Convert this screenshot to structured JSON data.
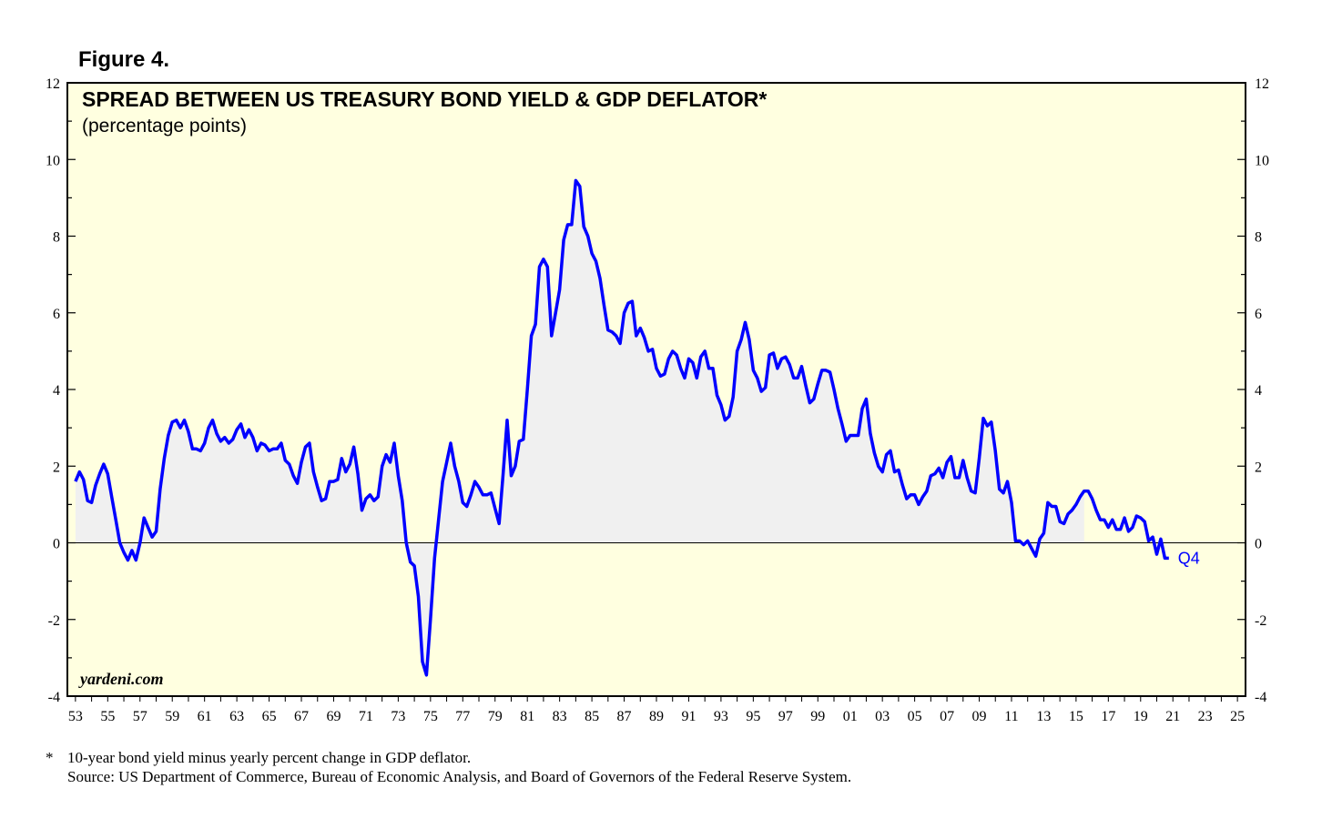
{
  "figure_label": "Figure 4.",
  "watermark": "yardeni.com",
  "footnote": {
    "marker": "*",
    "definition": "10-year bond yield minus yearly percent change in GDP deflator.",
    "source": "Source: US Department of Commerce, Bureau of Economic Analysis, and Board of Governors of the Federal Reserve System."
  },
  "colors": {
    "plot_background": "#FFFFE0",
    "series_line": "#0000FF",
    "area_fill": "#F0F0F0",
    "axis": "#000000"
  },
  "chart_data": {
    "type": "area",
    "title": "SPREAD BETWEEN US TREASURY BOND YIELD & GDP DEFLATOR*",
    "subtitle": "(percentage points)",
    "xlabel": "",
    "ylabel": "",
    "xlim": [
      1952.5,
      2025.5
    ],
    "ylim": [
      -4,
      12
    ],
    "yticks": [
      -4,
      -2,
      0,
      2,
      4,
      6,
      8,
      10,
      12
    ],
    "xtick_labels": [
      "53",
      "55",
      "57",
      "59",
      "61",
      "63",
      "65",
      "67",
      "69",
      "71",
      "73",
      "75",
      "77",
      "79",
      "81",
      "83",
      "85",
      "87",
      "89",
      "91",
      "93",
      "95",
      "97",
      "99",
      "01",
      "03",
      "05",
      "07",
      "09",
      "11",
      "13",
      "15",
      "17",
      "19",
      "21",
      "23",
      "25"
    ],
    "last_point_label": "Q4",
    "grid": false,
    "series": [
      {
        "name": "Spread",
        "x": [
          1953.0,
          1953.25,
          1953.5,
          1953.75,
          1954.0,
          1954.25,
          1954.5,
          1954.75,
          1955.0,
          1955.25,
          1955.5,
          1955.75,
          1956.0,
          1956.25,
          1956.5,
          1956.75,
          1957.0,
          1957.25,
          1957.5,
          1957.75,
          1958.0,
          1958.25,
          1958.5,
          1958.75,
          1959.0,
          1959.25,
          1959.5,
          1959.75,
          1960.0,
          1960.25,
          1960.5,
          1960.75,
          1961.0,
          1961.25,
          1961.5,
          1961.75,
          1962.0,
          1962.25,
          1962.5,
          1962.75,
          1963.0,
          1963.25,
          1963.5,
          1963.75,
          1964.0,
          1964.25,
          1964.5,
          1964.75,
          1965.0,
          1965.25,
          1965.5,
          1965.75,
          1966.0,
          1966.25,
          1966.5,
          1966.75,
          1967.0,
          1967.25,
          1967.5,
          1967.75,
          1968.0,
          1968.25,
          1968.5,
          1968.75,
          1969.0,
          1969.25,
          1969.5,
          1969.75,
          1970.0,
          1970.25,
          1970.5,
          1970.75,
          1971.0,
          1971.25,
          1971.5,
          1971.75,
          1972.0,
          1972.25,
          1972.5,
          1972.75,
          1973.0,
          1973.25,
          1973.5,
          1973.75,
          1974.0,
          1974.25,
          1974.5,
          1974.75,
          1975.0,
          1975.25,
          1975.5,
          1975.75,
          1976.0,
          1976.25,
          1976.5,
          1976.75,
          1977.0,
          1977.25,
          1977.5,
          1977.75,
          1978.0,
          1978.25,
          1978.5,
          1978.75,
          1979.0,
          1979.25,
          1979.5,
          1979.75,
          1980.0,
          1980.25,
          1980.5,
          1980.75,
          1981.0,
          1981.25,
          1981.5,
          1981.75,
          1982.0,
          1982.25,
          1982.5,
          1982.75,
          1983.0,
          1983.25,
          1983.5,
          1983.75,
          1984.0,
          1984.25,
          1984.5,
          1984.75,
          1985.0,
          1985.25,
          1985.5,
          1985.75,
          1986.0,
          1986.25,
          1986.5,
          1986.75,
          1987.0,
          1987.25,
          1987.5,
          1987.75,
          1988.0,
          1988.25,
          1988.5,
          1988.75,
          1989.0,
          1989.25,
          1989.5,
          1989.75,
          1990.0,
          1990.25,
          1990.5,
          1990.75,
          1991.0,
          1991.25,
          1991.5,
          1991.75,
          1992.0,
          1992.25,
          1992.5,
          1992.75,
          1993.0,
          1993.25,
          1993.5,
          1993.75,
          1994.0,
          1994.25,
          1994.5,
          1994.75,
          1995.0,
          1995.25,
          1995.5,
          1995.75,
          1996.0,
          1996.25,
          1996.5,
          1996.75,
          1997.0,
          1997.25,
          1997.5,
          1997.75,
          1998.0,
          1998.25,
          1998.5,
          1998.75,
          1999.0,
          1999.25,
          1999.5,
          1999.75,
          2000.0,
          2000.25,
          2000.5,
          2000.75,
          2001.0,
          2001.25,
          2001.5,
          2001.75,
          2002.0,
          2002.25,
          2002.5,
          2002.75,
          2003.0,
          2003.25,
          2003.5,
          2003.75,
          2004.0,
          2004.25,
          2004.5,
          2004.75,
          2005.0,
          2005.25,
          2005.5,
          2005.75,
          2006.0,
          2006.25,
          2006.5,
          2006.75,
          2007.0,
          2007.25,
          2007.5,
          2007.75,
          2008.0,
          2008.25,
          2008.5,
          2008.75,
          2009.0,
          2009.25,
          2009.5,
          2009.75,
          2010.0,
          2010.25,
          2010.5,
          2010.75,
          2011.0,
          2011.25,
          2011.5,
          2011.75,
          2012.0,
          2012.25,
          2012.5,
          2012.75,
          2013.0,
          2013.25,
          2013.5,
          2013.75,
          2014.0,
          2014.25,
          2014.5,
          2014.75,
          2015.0,
          2015.25,
          2015.5,
          2015.75,
          2016.0,
          2016.25,
          2016.5,
          2016.75,
          2017.0,
          2017.25,
          2017.5,
          2017.75,
          2018.0,
          2018.25,
          2018.5,
          2018.75,
          2019.0,
          2019.25,
          2019.5,
          2019.75,
          2020.0,
          2020.25,
          2020.5,
          2020.75
        ],
        "values": [
          1.6,
          1.85,
          1.65,
          1.1,
          1.05,
          1.5,
          1.8,
          2.05,
          1.8,
          1.2,
          0.6,
          0.0,
          -0.25,
          -0.45,
          -0.2,
          -0.45,
          0.0,
          0.65,
          0.4,
          0.15,
          0.3,
          1.4,
          2.2,
          2.8,
          3.15,
          3.2,
          3.0,
          3.2,
          2.9,
          2.45,
          2.45,
          2.4,
          2.6,
          3.0,
          3.2,
          2.85,
          2.65,
          2.75,
          2.6,
          2.7,
          2.95,
          3.1,
          2.75,
          2.95,
          2.75,
          2.4,
          2.6,
          2.55,
          2.4,
          2.45,
          2.45,
          2.6,
          2.15,
          2.05,
          1.75,
          1.55,
          2.1,
          2.5,
          2.6,
          1.85,
          1.45,
          1.1,
          1.15,
          1.6,
          1.6,
          1.65,
          2.2,
          1.85,
          2.05,
          2.5,
          1.8,
          0.85,
          1.15,
          1.25,
          1.1,
          1.2,
          2.0,
          2.3,
          2.1,
          2.6,
          1.75,
          1.1,
          0.0,
          -0.5,
          -0.6,
          -1.4,
          -3.1,
          -3.45,
          -2.0,
          -0.4,
          0.6,
          1.6,
          2.1,
          2.6,
          2.0,
          1.6,
          1.05,
          0.95,
          1.25,
          1.6,
          1.45,
          1.25,
          1.25,
          1.3,
          0.9,
          0.5,
          1.8,
          3.2,
          1.75,
          2.0,
          2.65,
          2.7,
          4.0,
          5.4,
          5.7,
          7.2,
          7.4,
          7.2,
          5.4,
          6.0,
          6.6,
          7.9,
          8.3,
          8.3,
          9.45,
          9.3,
          8.25,
          8.0,
          7.55,
          7.35,
          6.9,
          6.2,
          5.55,
          5.5,
          5.4,
          5.2,
          6.0,
          6.25,
          6.3,
          5.4,
          5.6,
          5.35,
          5.0,
          5.05,
          4.55,
          4.35,
          4.4,
          4.8,
          5.0,
          4.9,
          4.55,
          4.3,
          4.8,
          4.7,
          4.3,
          4.85,
          5.0,
          4.55,
          4.55,
          3.85,
          3.6,
          3.2,
          3.3,
          3.8,
          5.0,
          5.3,
          5.75,
          5.3,
          4.5,
          4.3,
          3.95,
          4.05,
          4.9,
          4.95,
          4.55,
          4.8,
          4.85,
          4.65,
          4.3,
          4.3,
          4.6,
          4.1,
          3.65,
          3.75,
          4.15,
          4.5,
          4.5,
          4.45,
          4.0,
          3.5,
          3.1,
          2.65,
          2.8,
          2.8,
          2.8,
          3.5,
          3.75,
          2.85,
          2.35,
          2.0,
          1.85,
          2.3,
          2.4,
          1.85,
          1.9,
          1.5,
          1.15,
          1.25,
          1.25,
          1.0,
          1.2,
          1.35,
          1.75,
          1.8,
          1.95,
          1.7,
          2.1,
          2.25,
          1.7,
          1.7,
          2.15,
          1.7,
          1.35,
          1.3,
          2.2,
          3.25,
          3.05,
          3.15,
          2.4,
          1.4,
          1.3,
          1.6,
          1.05,
          0.05,
          0.05,
          -0.05,
          0.05,
          -0.15,
          -0.35,
          0.1,
          0.25,
          1.05,
          0.95,
          0.95,
          0.55,
          0.5,
          0.75,
          0.85,
          1.0,
          1.2,
          1.35,
          1.35,
          1.15,
          0.85,
          0.6,
          0.6,
          0.4,
          0.6,
          0.35,
          0.35,
          0.65,
          0.3,
          0.4,
          0.7,
          0.65,
          0.55,
          0.05,
          0.15,
          -0.3,
          0.1,
          -0.4,
          -0.4
        ]
      }
    ]
  }
}
